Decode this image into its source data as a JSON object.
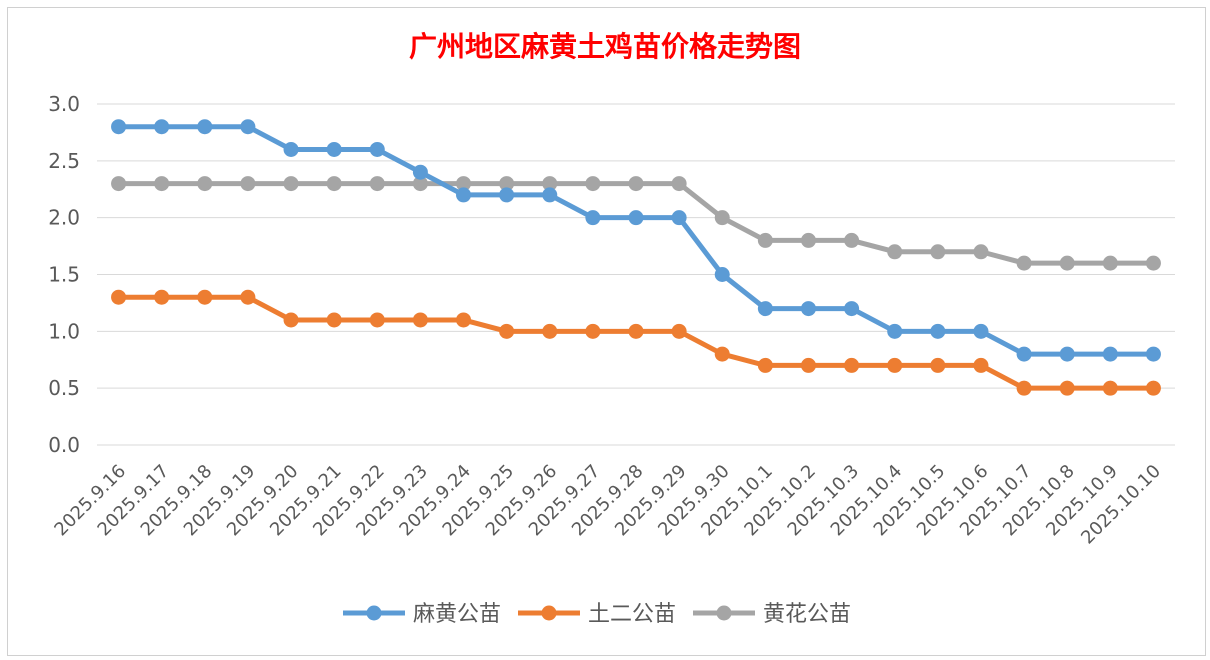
{
  "colors": {
    "title": "#ff0000",
    "grid": "#d9d9d9",
    "tick": "#595959",
    "series": [
      "#5b9bd5",
      "#ed7d31",
      "#a5a5a5"
    ]
  },
  "chart_data": {
    "type": "line",
    "title": "广州地区麻黄土鸡苗价格走势图",
    "xlabel": "",
    "ylabel": "",
    "ylim": [
      0,
      3.0
    ],
    "yticks": [
      "0.0",
      "0.5",
      "1.0",
      "1.5",
      "2.0",
      "2.5",
      "3.0"
    ],
    "grid": true,
    "legend_position": "bottom",
    "categories": [
      "2025.9.16",
      "2025.9.17",
      "2025.9.18",
      "2025.9.19",
      "2025.9.20",
      "2025.9.21",
      "2025.9.22",
      "2025.9.23",
      "2025.9.24",
      "2025.9.25",
      "2025.9.26",
      "2025.9.27",
      "2025.9.28",
      "2025.9.29",
      "2025.9.30",
      "2025.10.1",
      "2025.10.2",
      "2025.10.3",
      "2025.10.4",
      "2025.10.5",
      "2025.10.6",
      "2025.10.7",
      "2025.10.8",
      "2025.10.9",
      "2025.10.10"
    ],
    "series": [
      {
        "name": "麻黄公苗",
        "values": [
          2.8,
          2.8,
          2.8,
          2.8,
          2.6,
          2.6,
          2.6,
          2.4,
          2.2,
          2.2,
          2.2,
          2.0,
          2.0,
          2.0,
          1.5,
          1.2,
          1.2,
          1.2,
          1.0,
          1.0,
          1.0,
          0.8,
          0.8,
          0.8,
          0.8
        ]
      },
      {
        "name": "土二公苗",
        "values": [
          1.3,
          1.3,
          1.3,
          1.3,
          1.1,
          1.1,
          1.1,
          1.1,
          1.1,
          1.0,
          1.0,
          1.0,
          1.0,
          1.0,
          0.8,
          0.7,
          0.7,
          0.7,
          0.7,
          0.7,
          0.7,
          0.5,
          0.5,
          0.5,
          0.5
        ]
      },
      {
        "name": "黄花公苗",
        "values": [
          2.3,
          2.3,
          2.3,
          2.3,
          2.3,
          2.3,
          2.3,
          2.3,
          2.3,
          2.3,
          2.3,
          2.3,
          2.3,
          2.3,
          2.0,
          1.8,
          1.8,
          1.8,
          1.7,
          1.7,
          1.7,
          1.6,
          1.6,
          1.6,
          1.6
        ]
      }
    ]
  }
}
